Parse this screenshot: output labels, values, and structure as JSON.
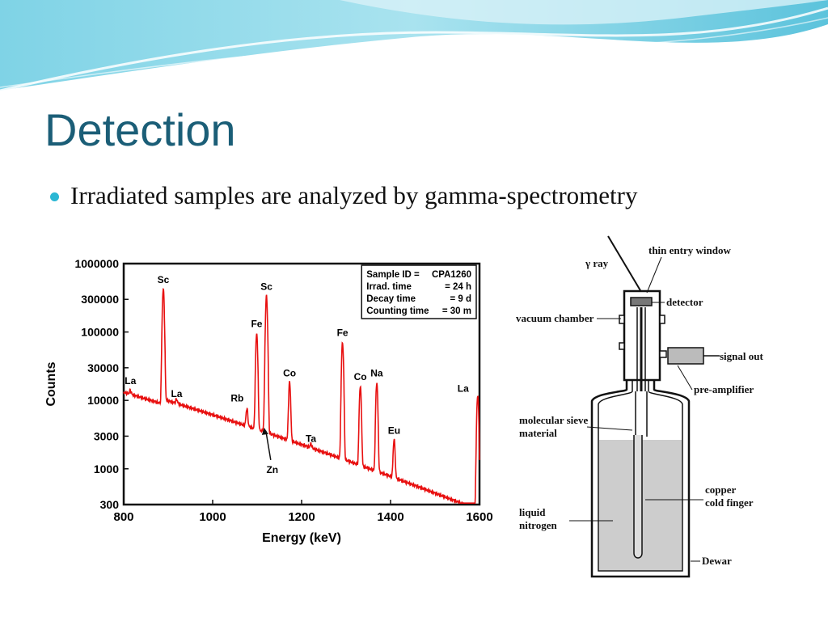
{
  "slide": {
    "title": "Detection",
    "bullet": "Irradiated samples are analyzed by gamma-spectrometry",
    "accent_color": "#2bb7d4",
    "title_color": "#1b5e77"
  },
  "chart_data": {
    "type": "line",
    "xlabel": "Energy (keV)",
    "ylabel": "Counts",
    "xlim": [
      800,
      1600
    ],
    "ylim": [
      300,
      1000000
    ],
    "log_y": true,
    "grid": false,
    "series_color": "#e81010",
    "x_ticks": [
      "800",
      "1000",
      "1200",
      "1400",
      "1600"
    ],
    "y_ticks": [
      {
        "value": 1000000,
        "label": "1000000"
      },
      {
        "value": 300000,
        "label": "300000"
      },
      {
        "value": 100000,
        "label": "100000"
      },
      {
        "value": 30000,
        "label": "30000"
      },
      {
        "value": 10000,
        "label": "10000"
      },
      {
        "value": 3000,
        "label": "3000"
      },
      {
        "value": 1000,
        "label": "1000"
      },
      {
        "value": 300,
        "label": "300"
      }
    ],
    "info_box": [
      [
        "Sample ID =",
        "CPA1260"
      ],
      [
        "Irrad. time",
        "= 24 h"
      ],
      [
        "Decay time",
        "= 9 d"
      ],
      [
        "Counting time",
        "= 30 m"
      ]
    ],
    "peaks": [
      {
        "label": "La",
        "energy": 815,
        "counts": 14000
      },
      {
        "label": "Sc",
        "energy": 889,
        "counts": 420000
      },
      {
        "label": "La",
        "energy": 919,
        "counts": 9000
      },
      {
        "label": "Rb",
        "energy": 1077,
        "counts": 7000
      },
      {
        "label": "Fe",
        "energy": 1099,
        "counts": 95000
      },
      {
        "label": "Sc",
        "energy": 1121,
        "counts": 330000
      },
      {
        "label": "Zn",
        "energy": 1116,
        "counts": 4000
      },
      {
        "label": "Co",
        "energy": 1173,
        "counts": 18000
      },
      {
        "label": "Ta",
        "energy": 1221,
        "counts": 2000
      },
      {
        "label": "Fe",
        "energy": 1292,
        "counts": 70000
      },
      {
        "label": "Co",
        "energy": 1332,
        "counts": 16000
      },
      {
        "label": "Na",
        "energy": 1369,
        "counts": 18000
      },
      {
        "label": "Eu",
        "energy": 1408,
        "counts": 2600
      },
      {
        "label": "La",
        "energy": 1596,
        "counts": 12000
      }
    ]
  },
  "detector": {
    "labels": {
      "gamma_ray": "γ ray",
      "thin_entry_window": "thin entry window",
      "detector": "detector",
      "vacuum_chamber": "vacuum chamber",
      "signal_out": "signal out",
      "pre_amplifier": "pre-amplifier",
      "molecular_sieve_1": "molecular sieve",
      "molecular_sieve_2": "material",
      "copper_1": "copper",
      "copper_2": "cold finger",
      "liquid_1": "liquid",
      "liquid_2": "nitrogen",
      "dewar": "Dewar"
    }
  }
}
